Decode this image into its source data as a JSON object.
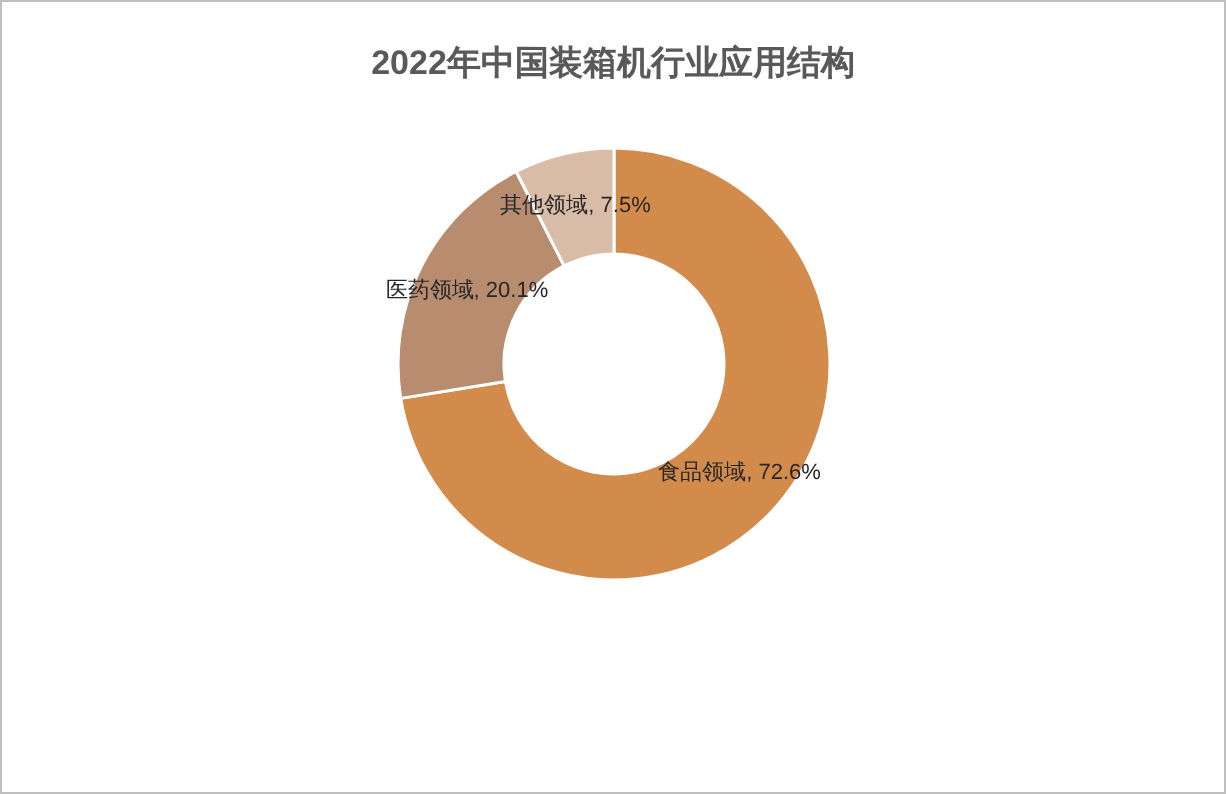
{
  "chart_data": {
    "type": "donut",
    "title": "2022年中国装箱机行业应用结构",
    "categories": [
      "食品领域",
      "医药领域",
      "其他领域"
    ],
    "values": [
      72.6,
      20.1,
      7.5
    ],
    "value_labels": [
      "72.6%",
      "20.1%",
      "7.5%"
    ],
    "colors": [
      "#d38b4c",
      "#b88c6e",
      "#d9bca8"
    ]
  }
}
